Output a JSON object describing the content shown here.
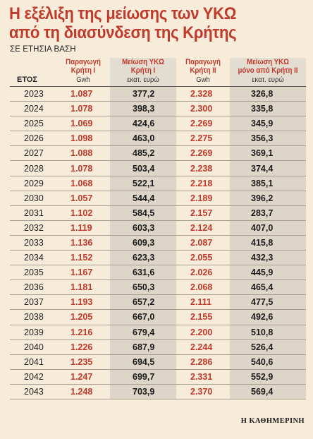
{
  "title": "Η εξέλιξη της μείωσης των ΥΚΩ από τη διασύνδεση της Κρήτης",
  "title_line1": "Η εξέλιξη της μείωσης των ΥΚΩ",
  "title_line2": "από τη διασύνδεση της Κρήτης",
  "subtitle": "ΣΕ ΕΤΗΣΙΑ ΒΑΣΗ",
  "table": {
    "headers": [
      {
        "name": "ΕΤΟΣ",
        "unit": ""
      },
      {
        "name": "Παραγωγή Κρήτη Ι",
        "name_l1": "Παραγωγή",
        "name_l2": "Κρήτη Ι",
        "unit": "Gwh"
      },
      {
        "name": "Μείωση ΥΚΩ Κρήτη Ι",
        "name_l1": "Μείωση ΥΚΩ",
        "name_l2": "Κρήτη Ι",
        "unit": "εκατ. ευρώ"
      },
      {
        "name": "Παραγωγή Κρήτη ΙΙ",
        "name_l1": "Παραγωγή",
        "name_l2": "Κρήτη ΙΙ",
        "unit": "Gwh"
      },
      {
        "name": "Μείωση ΥΚΩ μόνο από Κρήτη ΙΙ",
        "name_l1": "Μείωση ΥΚΩ",
        "name_l2": "μόνο από Κρήτη ΙΙ",
        "unit": "εκατ. ευρώ"
      }
    ],
    "rows": [
      [
        "2023",
        "1.087",
        "377,2",
        "2.328",
        "326,8"
      ],
      [
        "2024",
        "1.078",
        "398,3",
        "2.300",
        "335,8"
      ],
      [
        "2025",
        "1.069",
        "424,6",
        "2.269",
        "345,9"
      ],
      [
        "2026",
        "1.098",
        "463,0",
        "2.275",
        "356,3"
      ],
      [
        "2027",
        "1.088",
        "485,2",
        "2.269",
        "369,1"
      ],
      [
        "2028",
        "1.078",
        "503,4",
        "2.238",
        "374,4"
      ],
      [
        "2029",
        "1.068",
        "522,1",
        "2.218",
        "385,1"
      ],
      [
        "2030",
        "1.057",
        "544,4",
        "2.189",
        "396,2"
      ],
      [
        "2031",
        "1.102",
        "584,5",
        "2.157",
        "283,7"
      ],
      [
        "2032",
        "1.119",
        "603,3",
        "2.124",
        "407,0"
      ],
      [
        "2033",
        "1.136",
        "609,3",
        "2.087",
        "415,8"
      ],
      [
        "2034",
        "1.152",
        "623,3",
        "2.055",
        "432,3"
      ],
      [
        "2035",
        "1.167",
        "631,6",
        "2.026",
        "445,9"
      ],
      [
        "2036",
        "1.181",
        "650,3",
        "2.068",
        "465,4"
      ],
      [
        "2037",
        "1.193",
        "657,2",
        "2.111",
        "477,5"
      ],
      [
        "2038",
        "1.205",
        "667,0",
        "2.155",
        "492,6"
      ],
      [
        "2039",
        "1.216",
        "679,4",
        "2.200",
        "510,8"
      ],
      [
        "2040",
        "1.226",
        "687,9",
        "2.244",
        "526,4"
      ],
      [
        "2041",
        "1.235",
        "694,5",
        "2.286",
        "540,6"
      ],
      [
        "2042",
        "1.247",
        "699,7",
        "2.331",
        "552,9"
      ],
      [
        "2043",
        "1.248",
        "703,9",
        "2.370",
        "569,4"
      ]
    ]
  },
  "footer": {
    "brand": "Η ΚΑΘΗΜΕΡΙΝΗ"
  },
  "colors": {
    "accent_red": "#c0392b",
    "background": "#f6ecd9",
    "shaded_column": "#ddd5c8",
    "text": "#1a1a1a"
  }
}
